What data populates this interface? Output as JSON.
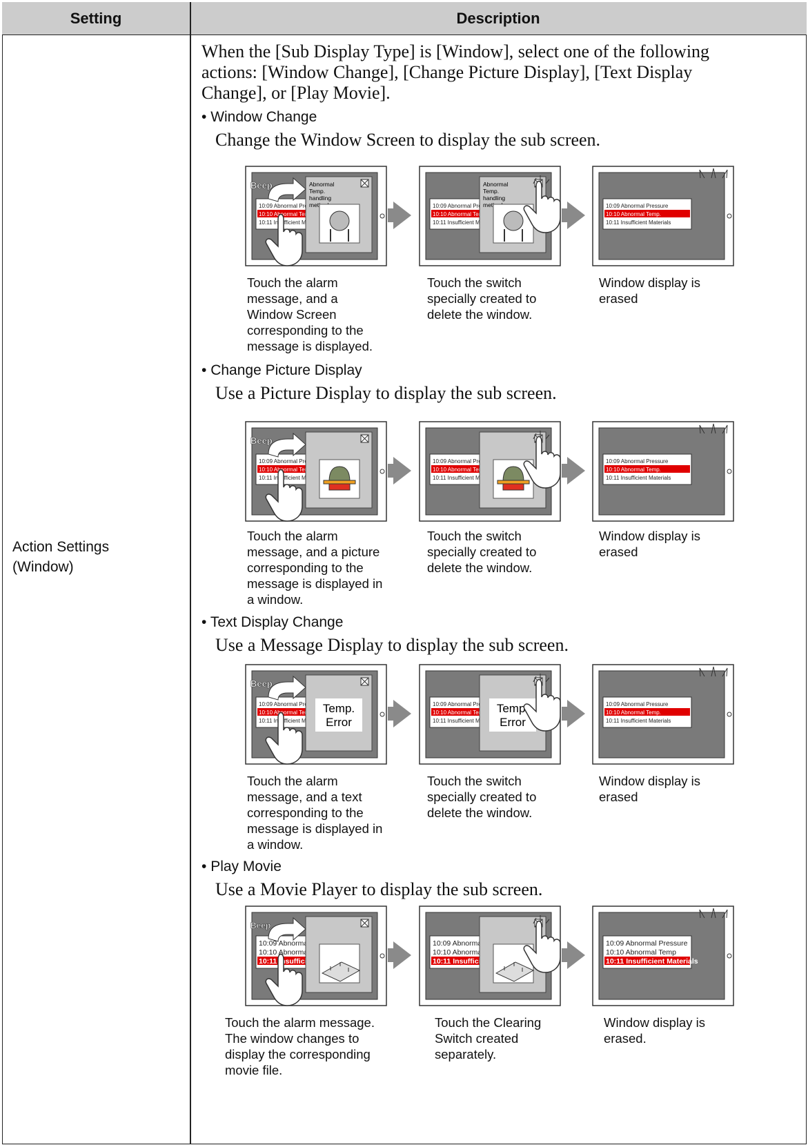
{
  "table": {
    "headers": [
      "Setting",
      "Description"
    ],
    "setting": [
      "Action Settings",
      "(Window)"
    ],
    "intro": [
      "When the [Sub Display Type] is [Window], select one of the following",
      "actions: [Window Change], [Change Picture Display], [Text Display",
      "Change], or [Play Movie]."
    ],
    "beep": "Beep",
    "actions": [
      {
        "title": "Window Change",
        "description": "Change the Window Screen to display the sub screen.",
        "alarms": [
          "10:09 Abnormal Pressure",
          "10:10 Abnormal Temp.",
          "10:11 Insufficient Materials"
        ],
        "window_text": [
          "Abnormal",
          "Temp.",
          "handling",
          "method"
        ],
        "captions": [
          [
            "Touch the alarm",
            "message, and a",
            "Window Screen",
            "corresponding to the",
            "message is displayed."
          ],
          [
            "Touch the switch",
            "specially created to",
            "delete the window."
          ],
          [
            "Window display is",
            "erased"
          ]
        ]
      },
      {
        "title": "Change Picture Display",
        "description": "Use a Picture Display to display the sub screen.",
        "alarms": [
          "10:09 Abnormal Pressure",
          "10:10 Abnormal Temp.",
          "10:11 Insufficient Materials"
        ],
        "captions": [
          [
            "Touch the alarm",
            "message, and a picture",
            "corresponding to the",
            "message is displayed in",
            "a window."
          ],
          [
            "Touch the switch",
            "specially created to",
            "delete the window."
          ],
          [
            "Window display is",
            "erased"
          ]
        ]
      },
      {
        "title": "Text Display Change",
        "description": "Use a Message Display to display the sub screen.",
        "alarms": [
          "10:09 Abnormal Pressure",
          "10:10 Abnormal Temp.",
          "10:11 Insufficient Materials"
        ],
        "window_text": [
          "Temp.",
          "Error"
        ],
        "captions": [
          [
            "Touch the alarm",
            "message, and a text",
            "corresponding to the",
            "message is displayed in",
            "a window."
          ],
          [
            "Touch the switch",
            "specially created to",
            "delete the window."
          ],
          [
            "Window display is",
            "erased"
          ]
        ]
      },
      {
        "title": "Play Movie",
        "description": "Use a Movie Player to display the sub screen.",
        "alarms": [
          "10:09 Abnormal Pressure",
          "10:10 Abnormal Temp",
          "10:11 Insufficient Materials"
        ],
        "captions": [
          [
            "Touch the alarm message.",
            "The window changes to",
            "display the corresponding",
            "movie file."
          ],
          [
            "Touch the Clearing",
            "Switch created",
            "separately."
          ],
          [
            "Window display is",
            "erased."
          ]
        ]
      }
    ]
  }
}
